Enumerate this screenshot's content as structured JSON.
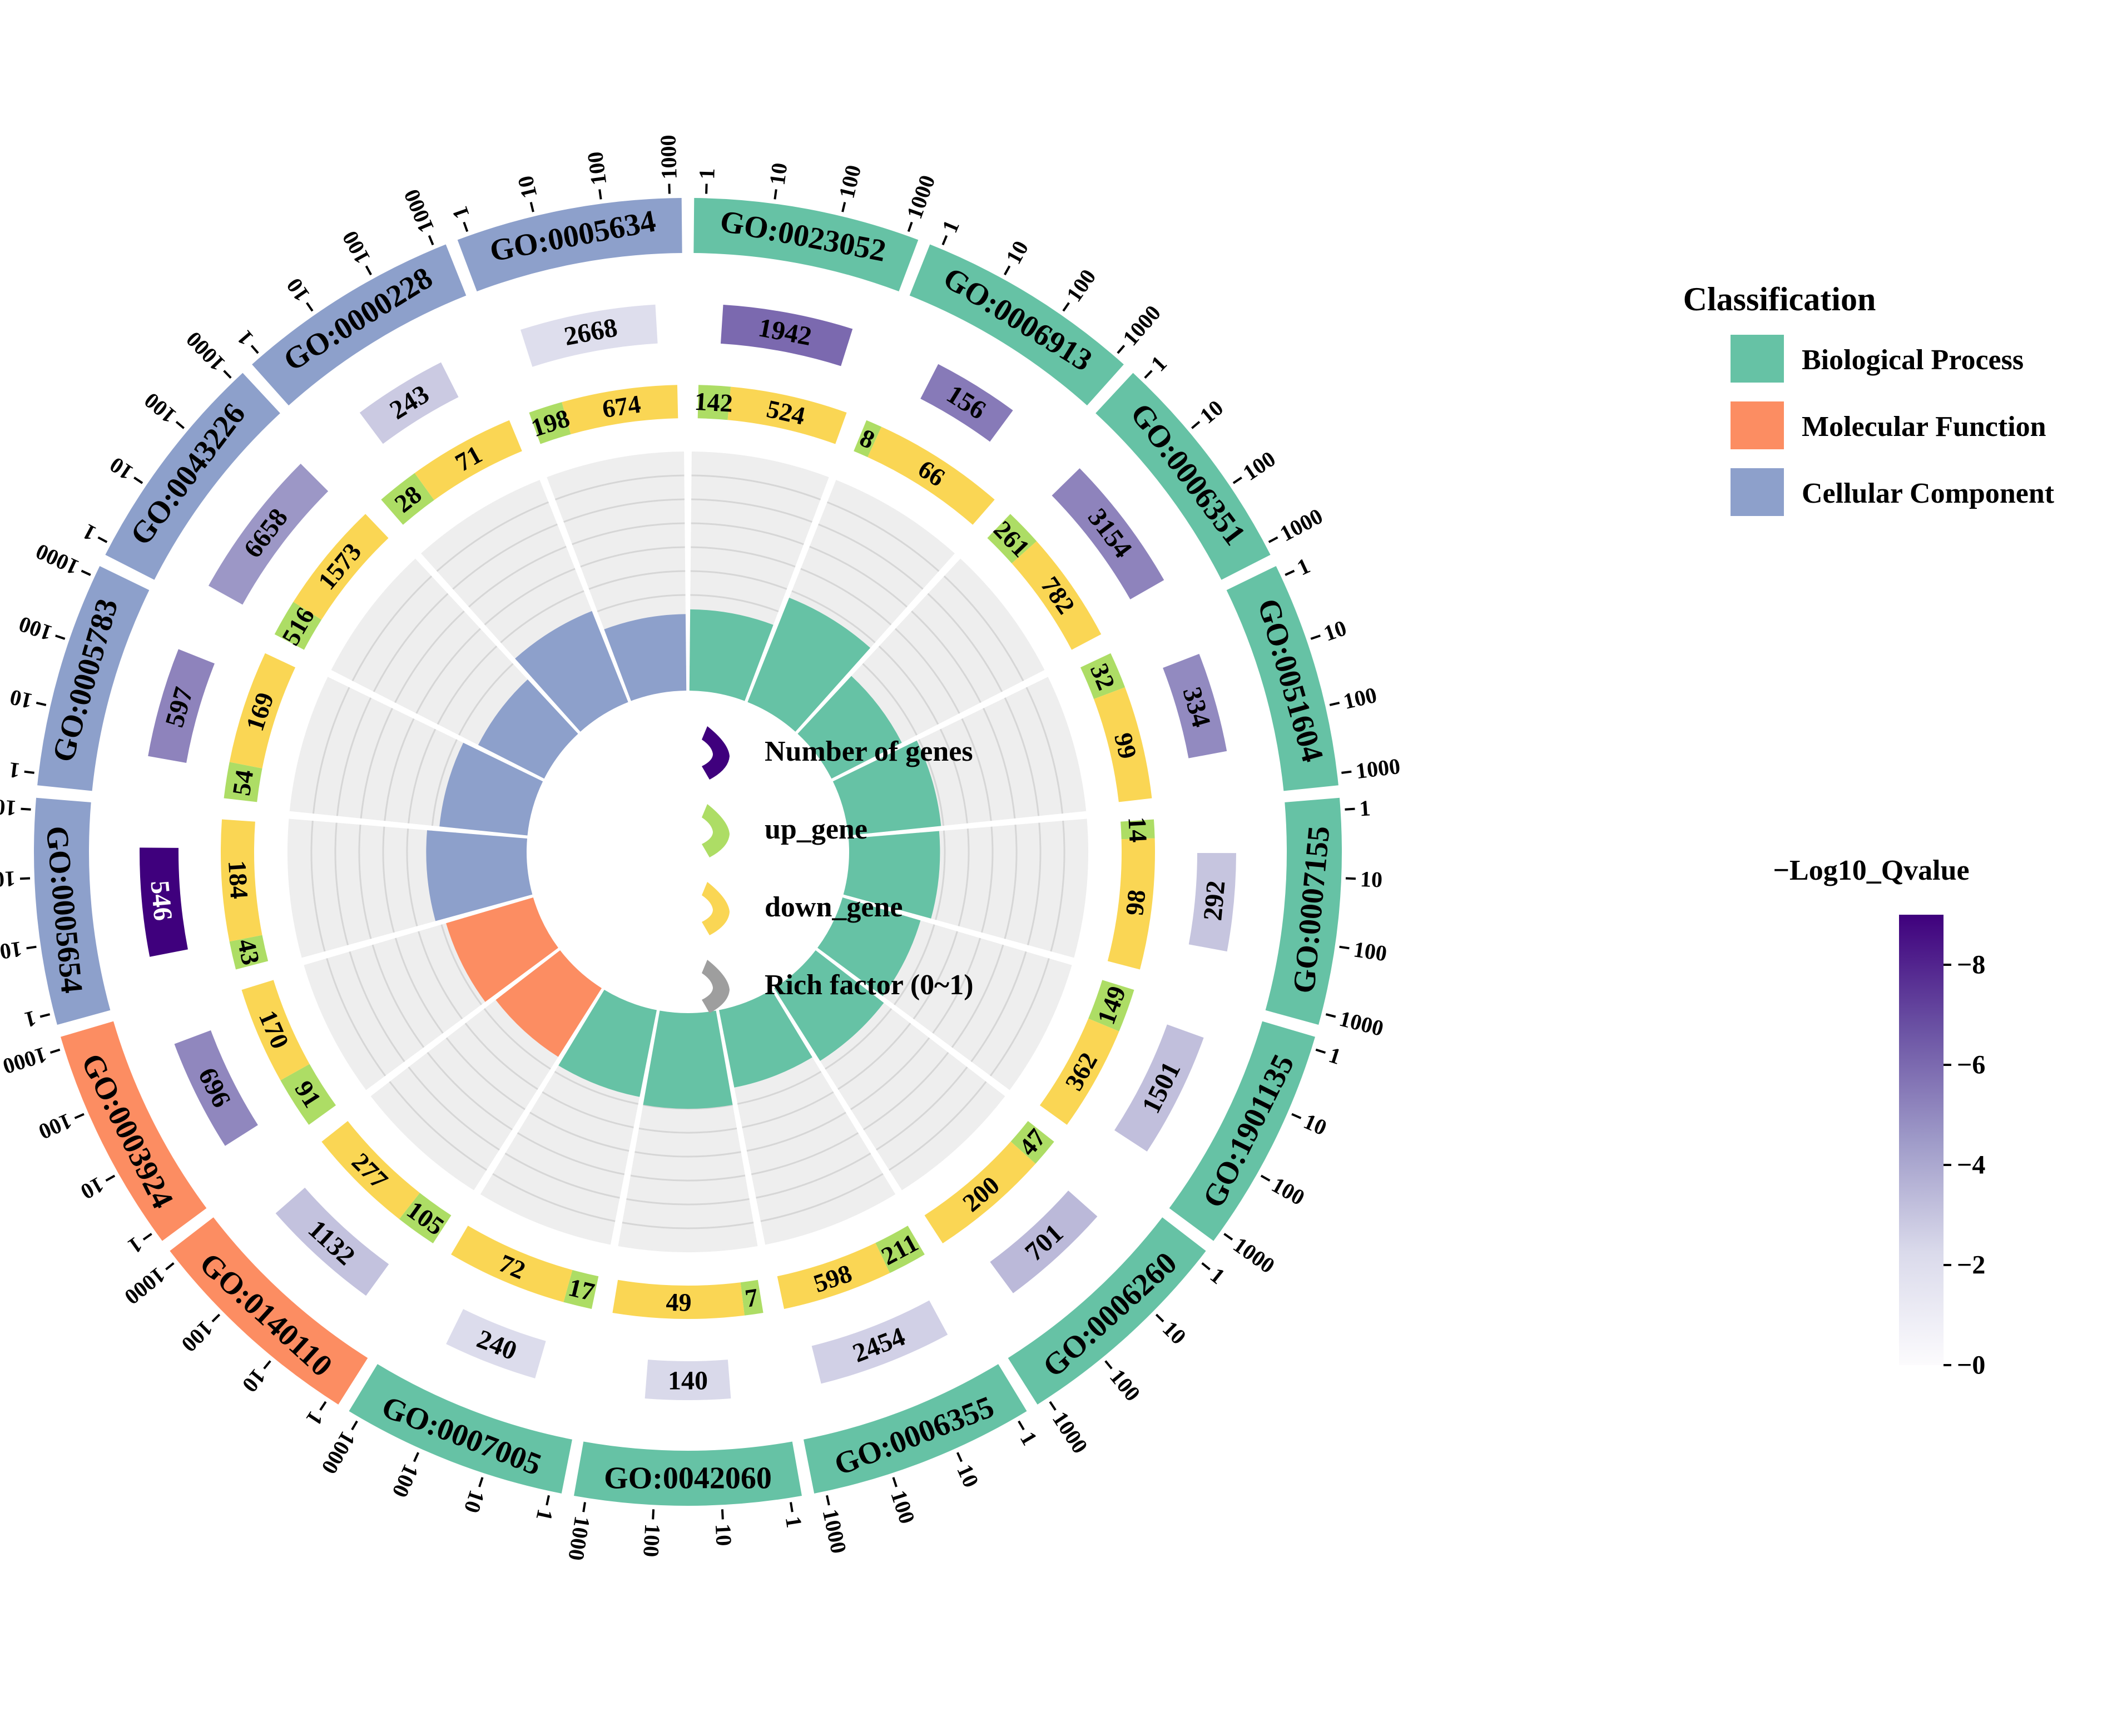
{
  "chart_data": {
    "type": "circular_go_enrichment",
    "scale_labels": [
      "1",
      "10",
      "100",
      "1000"
    ],
    "terms": [
      {
        "id": "GO:0023052",
        "category": "Biological Process",
        "total": 1942,
        "up": 142,
        "down": 524,
        "rich": 0.34,
        "qvalue": 6.0
      },
      {
        "id": "GO:0006913",
        "category": "Biological Process",
        "total": 156,
        "up": 8,
        "down": 66,
        "rich": 0.47,
        "qvalue": 5.5
      },
      {
        "id": "GO:0006351",
        "category": "Biological Process",
        "total": 3154,
        "up": 261,
        "down": 782,
        "rich": 0.33,
        "qvalue": 5.2
      },
      {
        "id": "GO:0051604",
        "category": "Biological Process",
        "total": 334,
        "up": 32,
        "down": 99,
        "rich": 0.39,
        "qvalue": 5.0
      },
      {
        "id": "GO:0007155",
        "category": "Biological Process",
        "total": 292,
        "up": 14,
        "down": 98,
        "rich": 0.38,
        "qvalue": 3.0
      },
      {
        "id": "GO:1901135",
        "category": "Biological Process",
        "total": 1501,
        "up": 149,
        "down": 362,
        "rich": 0.34,
        "qvalue": 3.2
      },
      {
        "id": "GO:0006260",
        "category": "Biological Process",
        "total": 701,
        "up": 47,
        "down": 200,
        "rich": 0.36,
        "qvalue": 3.4
      },
      {
        "id": "GO:0006355",
        "category": "Biological Process",
        "total": 2454,
        "up": 211,
        "down": 598,
        "rich": 0.33,
        "qvalue": 2.6
      },
      {
        "id": "GO:0042060",
        "category": "Biological Process",
        "total": 140,
        "up": 7,
        "down": 49,
        "rich": 0.4,
        "qvalue": 2.3
      },
      {
        "id": "GO:0007005",
        "category": "Biological Process",
        "total": 240,
        "up": 17,
        "down": 72,
        "rich": 0.37,
        "qvalue": 2.1
      },
      {
        "id": "GO:0140110",
        "category": "Molecular Function",
        "total": 1132,
        "up": 105,
        "down": 277,
        "rich": 0.34,
        "qvalue": 3.1
      },
      {
        "id": "GO:0003924",
        "category": "Molecular Function",
        "total": 696,
        "up": 91,
        "down": 170,
        "rich": 0.38,
        "qvalue": 5.1
      },
      {
        "id": "GO:0005654",
        "category": "Cellular Component",
        "total": 546,
        "up": 43,
        "down": 184,
        "rich": 0.42,
        "qvalue": 9.0
      },
      {
        "id": "GO:0005783",
        "category": "Cellular Component",
        "total": 597,
        "up": 54,
        "down": 169,
        "rich": 0.37,
        "qvalue": 5.2
      },
      {
        "id": "GO:0043226",
        "category": "Cellular Component",
        "total": 6658,
        "up": 516,
        "down": 1573,
        "rich": 0.31,
        "qvalue": 4.6
      },
      {
        "id": "GO:0000228",
        "category": "Cellular Component",
        "total": 243,
        "up": 28,
        "down": 71,
        "rich": 0.41,
        "qvalue": 2.8
      },
      {
        "id": "GO:0005634",
        "category": "Cellular Component",
        "total": 2668,
        "up": 198,
        "down": 674,
        "rich": 0.32,
        "qvalue": 2.0
      }
    ],
    "legend_classification": {
      "title": "Classification",
      "items": [
        {
          "label": "Biological Process",
          "color": "#66c2a5"
        },
        {
          "label": "Molecular Function",
          "color": "#fc8d62"
        },
        {
          "label": "Cellular Component",
          "color": "#8da0cb"
        }
      ]
    },
    "center_legend": [
      {
        "label": "Number of genes",
        "color": "#3f007d"
      },
      {
        "label": "up_gene",
        "color": "#addd65"
      },
      {
        "label": "down_gene",
        "color": "#fad654"
      },
      {
        "label": "Rich factor (0~1)",
        "color": "#9e9e9e"
      }
    ],
    "colorbar": {
      "title": "−Log10_Qvalue",
      "ticks": [
        "0",
        "2",
        "4",
        "6",
        "8"
      ],
      "tick_values": [
        0,
        2,
        4,
        6,
        8
      ],
      "range": [
        0,
        9
      ],
      "colors": [
        "#fcfbfd",
        "#dadaeb",
        "#9e9ac8",
        "#6a51a3",
        "#3f007d"
      ]
    },
    "colors": {
      "up": "#addd65",
      "down": "#fad654",
      "rich_bg": "#eeeeee",
      "rich_grid": "#d6d6d6",
      "outer_text": "#000000"
    }
  }
}
